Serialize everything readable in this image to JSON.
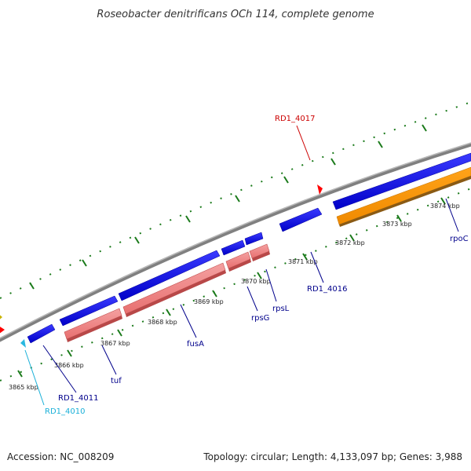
{
  "title": "Roseobacter denitrificans OCh 114, complete genome",
  "footer": {
    "accession": "Accession: NC_008209",
    "summary": "Topology: circular; Length: 4,133,097 bp; Genes: 3,988"
  },
  "colors": {
    "backbone": "#808080",
    "forward_gene": "#0000e6",
    "reverse_gene": "#f08080",
    "rpoC_gene": "#ff9900",
    "tick": "#1a7a1a",
    "label_dark": "#00008b",
    "label_cyan": "#1ab0d8",
    "label_red": "#cc0000"
  },
  "kbp_labels": [
    "3865 kbp",
    "3866 kbp",
    "3867 kbp",
    "3868 kbp",
    "3869 kbp",
    "3870 kbp",
    "3871 kbp",
    "3872 kbp",
    "3873 kbp",
    "3874 kbp"
  ],
  "gene_labels": [
    {
      "text": "RD1_4010",
      "color": "cyan"
    },
    {
      "text": "RD1_4011",
      "color": "dark"
    },
    {
      "text": "tuf",
      "color": "dark"
    },
    {
      "text": "fusA",
      "color": "dark"
    },
    {
      "text": "rpsG",
      "color": "dark"
    },
    {
      "text": "rpsL",
      "color": "dark"
    },
    {
      "text": "RD1_4016",
      "color": "dark"
    },
    {
      "text": "RD1_4017",
      "color": "red"
    },
    {
      "text": "rpoC",
      "color": "dark"
    }
  ]
}
